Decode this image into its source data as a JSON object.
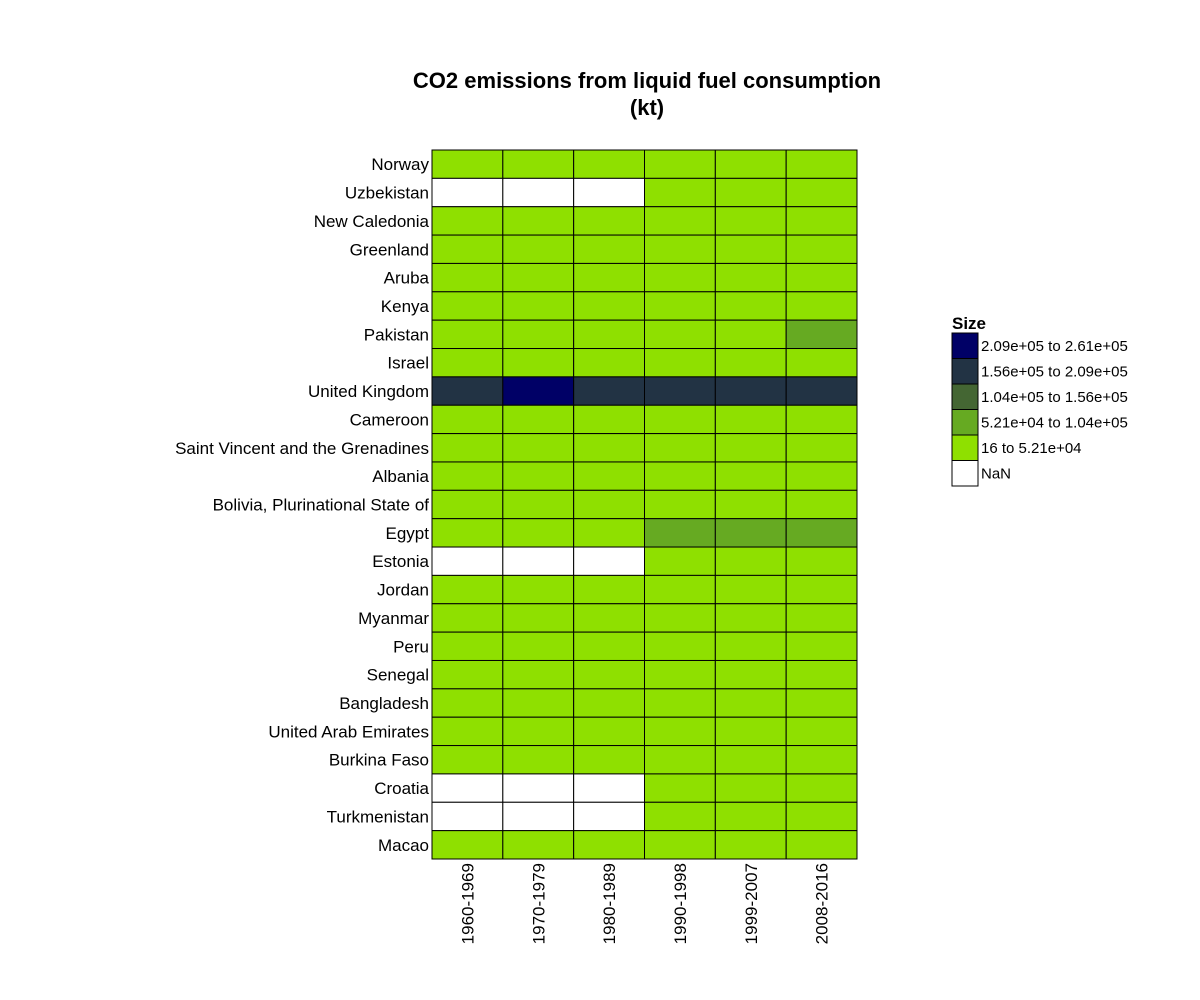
{
  "chart_data": {
    "type": "heatmap",
    "title": [
      "CO2 emissions from liquid fuel consumption",
      "(kt)"
    ],
    "xlabel": "",
    "ylabel": "",
    "x_categories": [
      "1960-1969",
      "1970-1979",
      "1980-1989",
      "1990-1998",
      "1999-2007",
      "2008-2016"
    ],
    "y_categories": [
      "Norway",
      "Uzbekistan",
      "New Caledonia",
      "Greenland",
      "Aruba",
      "Kenya",
      "Pakistan",
      "Israel",
      "United Kingdom",
      "Cameroon",
      "Saint Vincent and the Grenadines",
      "Albania",
      "Bolivia, Plurinational State of",
      "Egypt",
      "Estonia",
      "Jordan",
      "Myanmar",
      "Peru",
      "Senegal",
      "Bangladesh",
      "United Arab Emirates",
      "Burkina Faso",
      "Croatia",
      "Turkmenistan",
      "Macao"
    ],
    "bins": [
      {
        "label": "2.09e+05 to 2.61e+05",
        "color": "#000066"
      },
      {
        "label": "1.56e+05 to 2.09e+05",
        "color": "#223344"
      },
      {
        "label": "1.04e+05 to 1.56e+05",
        "color": "#446633"
      },
      {
        "label": "5.21e+04 to 1.04e+05",
        "color": "#66AA22"
      },
      {
        "label": "16 to 5.21e+04",
        "color": "#8FE000"
      },
      {
        "label": "NaN",
        "color": "#FFFFFF"
      }
    ],
    "cells": [
      [
        4,
        4,
        4,
        4,
        4,
        4
      ],
      [
        5,
        5,
        5,
        4,
        4,
        4
      ],
      [
        4,
        4,
        4,
        4,
        4,
        4
      ],
      [
        4,
        4,
        4,
        4,
        4,
        4
      ],
      [
        4,
        4,
        4,
        4,
        4,
        4
      ],
      [
        4,
        4,
        4,
        4,
        4,
        4
      ],
      [
        4,
        4,
        4,
        4,
        4,
        3
      ],
      [
        4,
        4,
        4,
        4,
        4,
        4
      ],
      [
        1,
        0,
        1,
        1,
        1,
        1
      ],
      [
        4,
        4,
        4,
        4,
        4,
        4
      ],
      [
        4,
        4,
        4,
        4,
        4,
        4
      ],
      [
        4,
        4,
        4,
        4,
        4,
        4
      ],
      [
        4,
        4,
        4,
        4,
        4,
        4
      ],
      [
        4,
        4,
        4,
        3,
        3,
        3
      ],
      [
        5,
        5,
        5,
        4,
        4,
        4
      ],
      [
        4,
        4,
        4,
        4,
        4,
        4
      ],
      [
        4,
        4,
        4,
        4,
        4,
        4
      ],
      [
        4,
        4,
        4,
        4,
        4,
        4
      ],
      [
        4,
        4,
        4,
        4,
        4,
        4
      ],
      [
        4,
        4,
        4,
        4,
        4,
        4
      ],
      [
        4,
        4,
        4,
        4,
        4,
        4
      ],
      [
        4,
        4,
        4,
        4,
        4,
        4
      ],
      [
        5,
        5,
        5,
        4,
        4,
        4
      ],
      [
        5,
        5,
        5,
        4,
        4,
        4
      ],
      [
        4,
        4,
        4,
        4,
        4,
        4
      ]
    ],
    "legend": {
      "title": "Size",
      "position": "right"
    },
    "grid": false
  }
}
